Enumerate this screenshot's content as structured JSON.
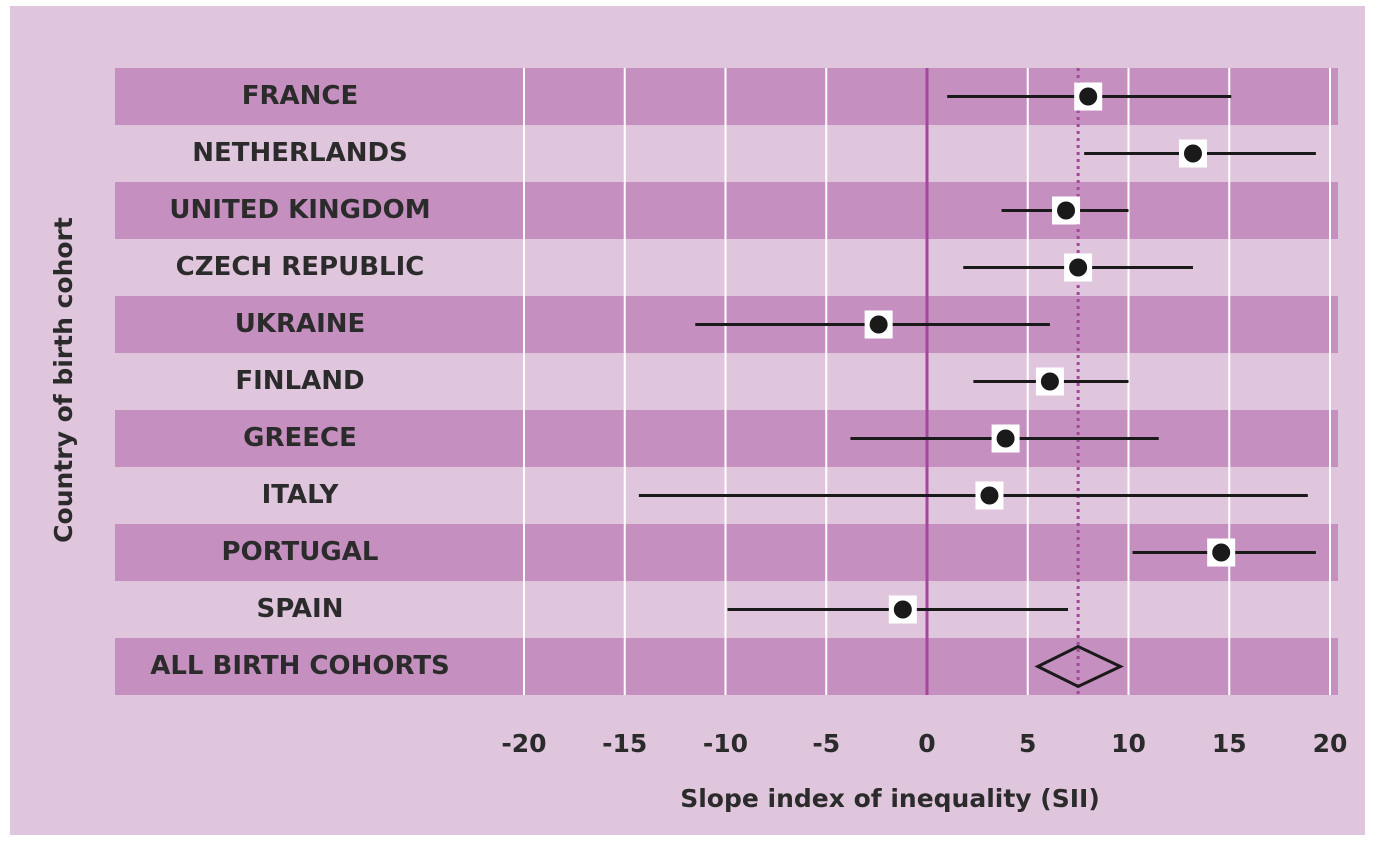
{
  "chart_data": {
    "type": "forest",
    "x_label": "Slope index of inequality (SII)",
    "y_label": "Country of birth cohort",
    "categories": [
      "FRANCE",
      "NETHERLANDS",
      "UNITED KINGDOM",
      "CZECH REPUBLIC",
      "UKRAINE",
      "FINLAND",
      "GREECE",
      "ITALY",
      "PORTUGAL",
      "SPAIN"
    ],
    "values": [
      8,
      13.2,
      6.9,
      7.5,
      -2.4,
      6.1,
      3.9,
      3.1,
      14.6,
      -1.2
    ],
    "ci_lower": [
      1,
      7.8,
      3.7,
      1.8,
      -11.5,
      2.3,
      -3.8,
      -14.3,
      10.2,
      -9.9
    ],
    "ci_upper": [
      15.1,
      19.3,
      10,
      13.2,
      6.1,
      10,
      11.5,
      18.9,
      19.3,
      7
    ],
    "summary": {
      "label": "ALL BIRTH COHORTS",
      "value": 7.5,
      "lower": 5.5,
      "upper": 9.6
    },
    "xlim": [
      -20,
      20
    ],
    "xticks": [
      -20,
      -15,
      -10,
      -5,
      0,
      5,
      10,
      15,
      20
    ],
    "grid": true,
    "color": "#1a1a1a"
  }
}
